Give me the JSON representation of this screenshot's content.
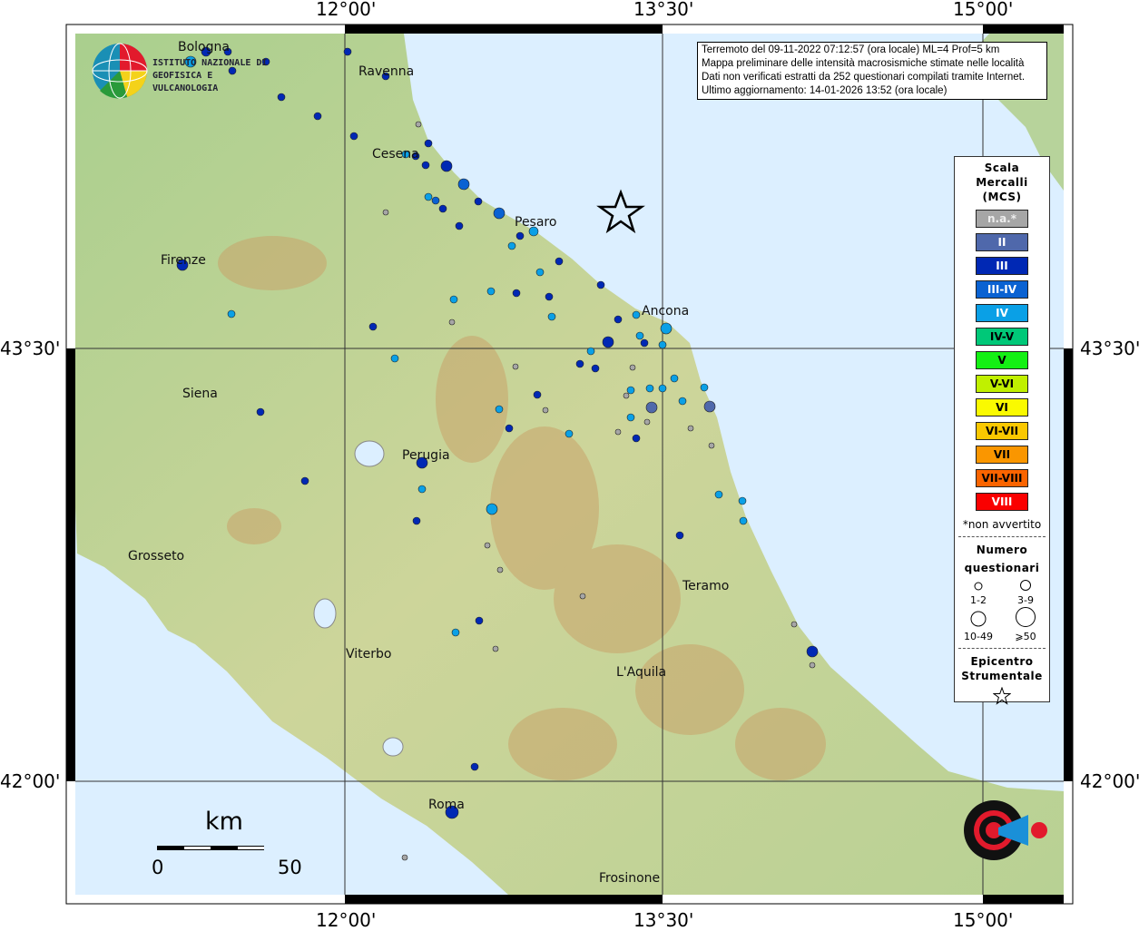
{
  "info": {
    "line1": "Terremoto del 09-11-2022 07:12:57 (ora locale) ML=4 Prof=5 km",
    "line2": "Mappa preliminare delle intensità macrosismiche stimate nelle località",
    "line3": "Dati non verificati estratti da 252 questionari compilati tramite Internet.",
    "line4": "Ultimo aggiornamento: 14-01-2026 13:52 (ora locale)"
  },
  "axes": {
    "lon": [
      "12°00'",
      "13°30'",
      "15°00'"
    ],
    "lat": [
      "43°30'",
      "42°00'"
    ]
  },
  "logo": {
    "ingv": "ISTITUTO NAZIONALE DI GEOFISICA E VULCANOLOGIA",
    "hsit": "www.haisentitoilterremoto.it"
  },
  "legend": {
    "title": [
      "Scala",
      "Mercalli",
      "(MCS)"
    ],
    "classes": [
      {
        "label": "n.a.*",
        "color": "#a6a6a6",
        "text": "#eee"
      },
      {
        "label": "II",
        "color": "#4f68ab",
        "text": "#fff"
      },
      {
        "label": "III",
        "color": "#0028b4",
        "text": "#fff"
      },
      {
        "label": "III-IV",
        "color": "#0a62d2",
        "text": "#fff"
      },
      {
        "label": "IV",
        "color": "#0aa0e6",
        "text": "#fff"
      },
      {
        "label": "IV-V",
        "color": "#00c878",
        "text": "#000"
      },
      {
        "label": "V",
        "color": "#14f014",
        "text": "#000"
      },
      {
        "label": "V-VI",
        "color": "#c0f000",
        "text": "#000"
      },
      {
        "label": "VI",
        "color": "#fafa00",
        "text": "#000"
      },
      {
        "label": "VI-VII",
        "color": "#fac800",
        "text": "#000"
      },
      {
        "label": "VII",
        "color": "#fa9600",
        "text": "#000"
      },
      {
        "label": "VII-VIII",
        "color": "#fa6400",
        "text": "#000"
      },
      {
        "label": "VIII",
        "color": "#fa0000",
        "text": "#fff"
      }
    ],
    "not_felt": "*non avvertito",
    "count_title": [
      "Numero",
      "questionari"
    ],
    "counts": [
      "1-2",
      "3-9",
      "10-49",
      "⩾50"
    ],
    "epi_title": [
      "Epicentro",
      "Strumentale"
    ]
  },
  "scale": {
    "unit": "km",
    "min": "0",
    "max": "50"
  },
  "cities": [
    {
      "name": "Bologna"
    },
    {
      "name": "Ravenna"
    },
    {
      "name": "Cesena"
    },
    {
      "name": "Pesaro"
    },
    {
      "name": "Firenze"
    },
    {
      "name": "Ancona"
    },
    {
      "name": "Siena"
    },
    {
      "name": "Perugia"
    },
    {
      "name": "Grosseto"
    },
    {
      "name": "Teramo"
    },
    {
      "name": "Viterbo"
    },
    {
      "name": "L'Aquila"
    },
    {
      "name": "Roma"
    },
    {
      "name": "Frosinone"
    }
  ]
}
